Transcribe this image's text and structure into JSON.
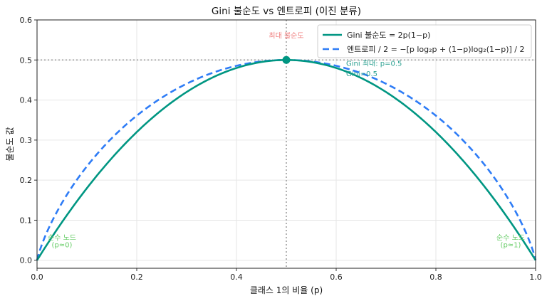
{
  "chart_data": {
    "type": "line",
    "title": "Gini 불순도 vs 엔트로피 (이진 분류)",
    "xlabel": "클래스 1의 비율 (p)",
    "ylabel": "불순도 값",
    "xlim": [
      0,
      1
    ],
    "ylim": [
      -0.02,
      0.6
    ],
    "xticks": [
      "0.0",
      "0.2",
      "0.4",
      "0.6",
      "0.8",
      "1.0"
    ],
    "xtick_values": [
      0,
      0.2,
      0.4,
      0.6,
      0.8,
      1.0
    ],
    "yticks": [
      "0.0",
      "0.1",
      "0.2",
      "0.3",
      "0.4",
      "0.5",
      "0.6"
    ],
    "ytick_values": [
      0,
      0.1,
      0.2,
      0.3,
      0.4,
      0.5,
      0.6
    ],
    "grid": true,
    "legend_position": "top-right",
    "series": [
      {
        "name": "Gini 불순도 = 2p(1−p)",
        "formula": "gini",
        "color": "#009682",
        "style": "solid"
      },
      {
        "name": "엔트로피 / 2 = −[p log₂p + (1−p)log₂(1−p)] / 2",
        "formula": "entropy_half",
        "color": "#2e7cf6",
        "style": "dashed"
      }
    ],
    "reference_lines": {
      "hline": 0.5,
      "vline": 0.5,
      "color": "#999999"
    },
    "max_point": {
      "x": 0.5,
      "y": 0.5,
      "color": "#009682"
    },
    "annotations": [
      {
        "text": "최대 불순도",
        "x": 0.5,
        "y": 0.555,
        "color": "#f08080"
      },
      {
        "text": "Gini 최대: p=0.5",
        "x": 0.62,
        "y": 0.485,
        "color": "#2aa090"
      },
      {
        "text": "Gini=0.5",
        "x": 0.62,
        "y": 0.46,
        "color": "#2aa090"
      },
      {
        "text": "순수 노드",
        "x": 0.05,
        "y": 0.05,
        "color": "#66cc66"
      },
      {
        "text": "(p≈0)",
        "x": 0.05,
        "y": 0.032,
        "color": "#66cc66"
      },
      {
        "text": "순수 노드",
        "x": 0.95,
        "y": 0.05,
        "color": "#66cc66"
      },
      {
        "text": "(p≈1)",
        "x": 0.95,
        "y": 0.032,
        "color": "#66cc66"
      }
    ]
  }
}
